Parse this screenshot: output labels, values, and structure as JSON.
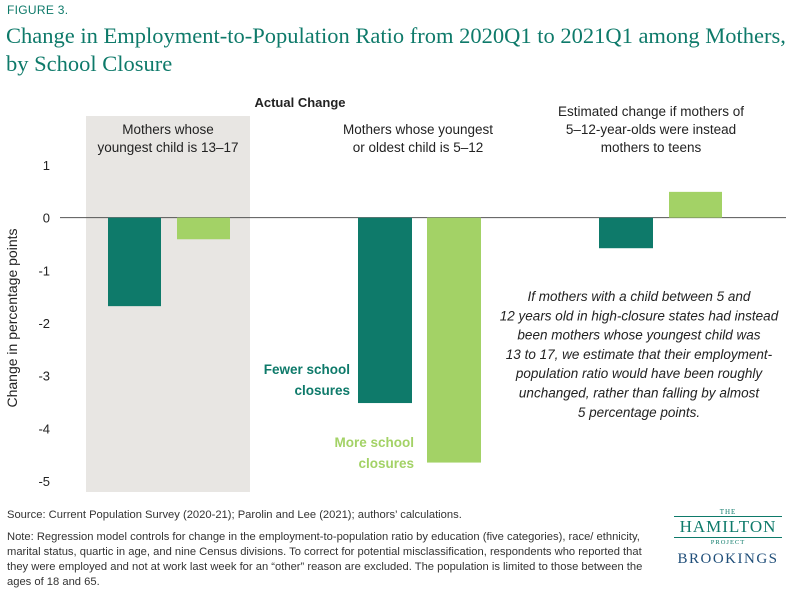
{
  "figure_label": "FIGURE 3.",
  "chart_data": {
    "type": "bar",
    "title": "Change in Employment-to-Population Ratio from 2020Q1 to 2021Q1 among Mothers, by School Closure",
    "ylabel": "Change in percentage points",
    "ylim": [
      -5,
      1
    ],
    "yticks": [
      "1",
      "0",
      "-1",
      "-2",
      "-3",
      "-4",
      "-5"
    ],
    "ytick_values": [
      1,
      0,
      -1,
      -2,
      -3,
      -4,
      -5
    ],
    "section_header": "Actual Change",
    "groups": [
      {
        "label_lines": [
          "Mothers whose",
          "youngest child is 13–17"
        ],
        "shaded": true
      },
      {
        "label_lines": [
          "Mothers whose youngest",
          "or oldest child is 5–12"
        ],
        "shaded": false
      },
      {
        "label_lines": [
          "Estimated change if mothers of",
          "5–12-year-olds were instead",
          "mothers to teens"
        ],
        "shaded": false
      }
    ],
    "series": [
      {
        "name": "Fewer school closures",
        "label_lines": [
          "Fewer school",
          "closures"
        ],
        "color": "#0e7a6a",
        "values": [
          -1.68,
          -3.52,
          -0.58
        ]
      },
      {
        "name": "More school closures",
        "label_lines": [
          "More school",
          "closures"
        ],
        "color": "#a3d266",
        "values": [
          -0.41,
          -4.65,
          0.49
        ]
      }
    ],
    "annotation_lines": [
      "If mothers with a child between 5 and",
      "12 years old in high-closure states had instead",
      "been  mothers whose youngest child was",
      "13 to 17, we  estimate that their employment-",
      "population ratio would have been roughly",
      "unchanged, rather than falling by almost",
      "5 percentage points."
    ],
    "grid": false
  },
  "source": "Source: Current Population Survey (2020-21); Parolin and Lee (2021); authors’ calculations.",
  "note": "Note: Regression model controls for change in the employment-to-population ratio by education (five categories), race/ ethnicity, marital status, quartic in age, and nine Census divisions. To correct for potential misclassification, respondents who reported that they were employed and not at work last week for an “other” reason are excluded. The population is limited to those between the ages of 18 and 65.",
  "logo": {
    "the": "THE",
    "hamilton": "HAMILTON",
    "project": "PROJECT",
    "brookings": "BROOKINGS"
  }
}
